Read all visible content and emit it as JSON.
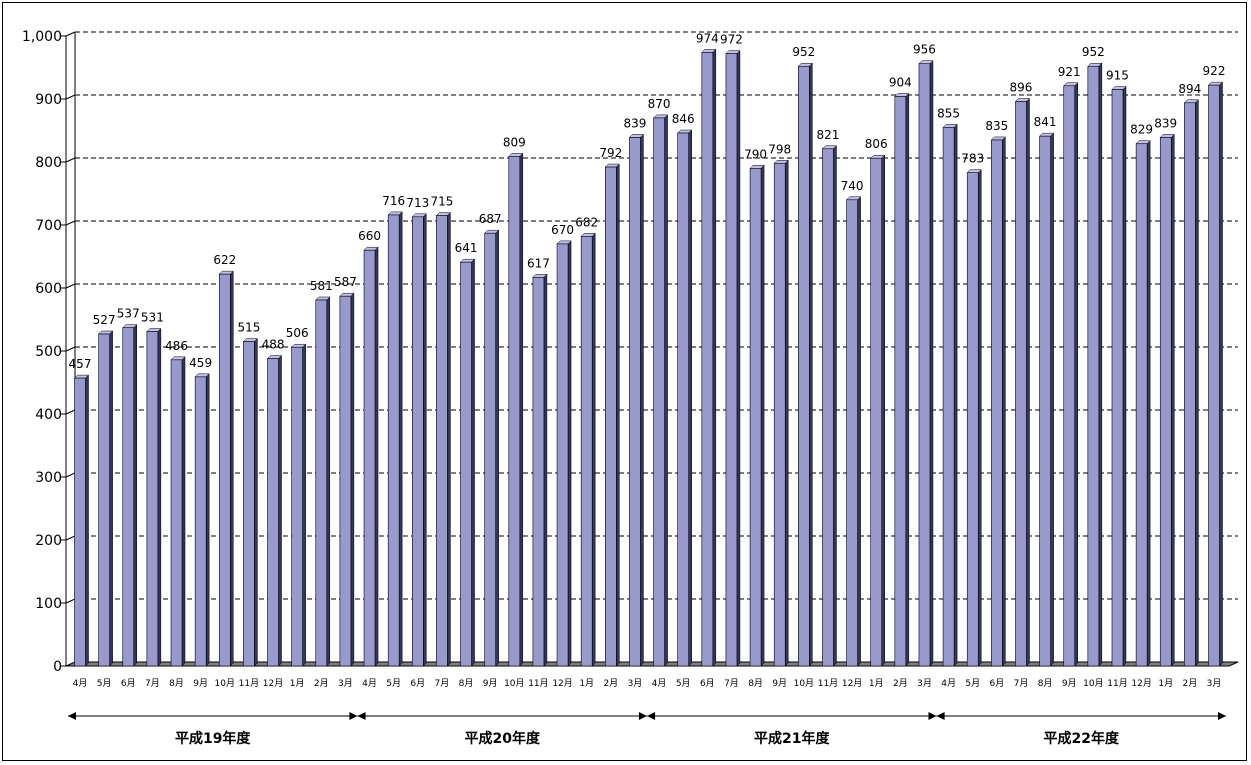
{
  "chart_data": {
    "type": "bar",
    "categories": [
      "4月",
      "5月",
      "6月",
      "7月",
      "8月",
      "9月",
      "10月",
      "11月",
      "12月",
      "1月",
      "2月",
      "3月",
      "4月",
      "5月",
      "6月",
      "7月",
      "8月",
      "9月",
      "10月",
      "11月",
      "12月",
      "1月",
      "2月",
      "3月",
      "4月",
      "5月",
      "6月",
      "7月",
      "8月",
      "9月",
      "10月",
      "11月",
      "12月",
      "1月",
      "2月",
      "3月",
      "4月",
      "5月",
      "6月",
      "7月",
      "8月",
      "9月",
      "10月",
      "11月",
      "12月",
      "1月",
      "2月",
      "3月"
    ],
    "values": [
      457,
      527,
      537,
      531,
      486,
      459,
      622,
      515,
      488,
      506,
      581,
      587,
      660,
      716,
      713,
      715,
      641,
      687,
      809,
      617,
      670,
      682,
      792,
      839,
      870,
      846,
      974,
      972,
      790,
      798,
      952,
      821,
      740,
      806,
      904,
      956,
      855,
      783,
      835,
      896,
      841,
      921,
      952,
      915,
      829,
      839,
      894,
      922
    ],
    "ylim": [
      0,
      1000
    ],
    "yticks": [
      "0",
      "100",
      "200",
      "300",
      "400",
      "500",
      "600",
      "700",
      "800",
      "900",
      "1,000"
    ],
    "grid": true,
    "periods": [
      {
        "label": "平成19年度",
        "start": 0,
        "end": 11
      },
      {
        "label": "平成20年度",
        "start": 12,
        "end": 23
      },
      {
        "label": "平成21年度",
        "start": 24,
        "end": 35
      },
      {
        "label": "平成22年度",
        "start": 36,
        "end": 47
      }
    ],
    "colors": {
      "bar_front": "#9999cc",
      "bar_side": "#333366",
      "bar_top": "#c0c0e8",
      "floor": "#808080"
    }
  }
}
